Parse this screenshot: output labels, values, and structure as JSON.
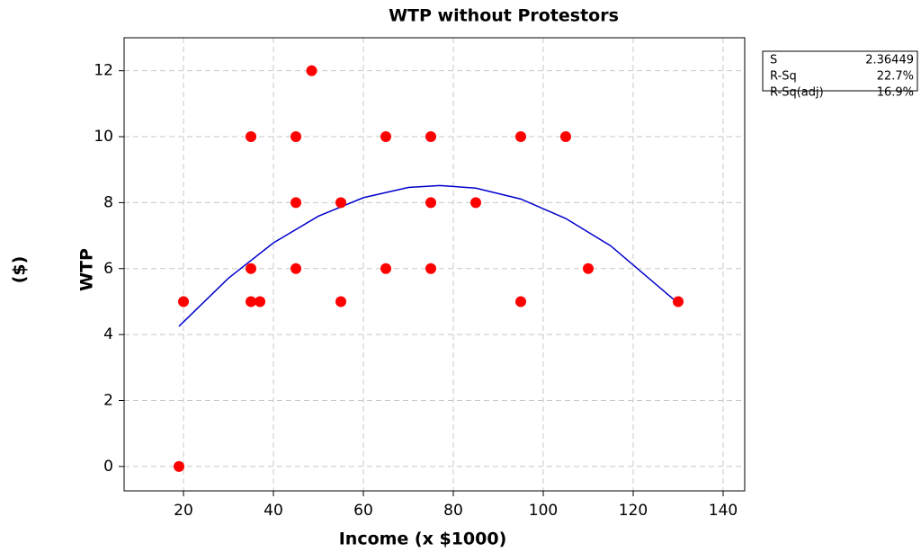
{
  "chart_data": {
    "type": "scatter",
    "title": "WTP without Protestors",
    "x_label": "Income (x $1000)",
    "y_label": "WTP",
    "y_unit_label": "($)",
    "xlim": [
      6.8,
      144.8
    ],
    "xticks": [
      20,
      40,
      60,
      80,
      100,
      120,
      140
    ],
    "ylim": [
      -0.74,
      13.0
    ],
    "yticks": [
      0,
      2,
      4,
      6,
      8,
      10,
      12
    ],
    "grid": true,
    "points": {
      "color": "#ff0000",
      "x": [
        19,
        20,
        35,
        35,
        35,
        37,
        45,
        45,
        45,
        48.5,
        55,
        55,
        65,
        65,
        75,
        75,
        75,
        85,
        95,
        95,
        105,
        110,
        130
      ],
      "values": [
        0,
        5,
        10,
        6,
        5,
        5,
        10,
        8,
        6,
        12,
        8,
        5,
        10,
        6,
        10,
        8,
        6,
        8,
        10,
        5,
        10,
        6,
        5
      ]
    },
    "fit": {
      "color": "#0000cc",
      "x": [
        19,
        30,
        40,
        50,
        60,
        70,
        77,
        85,
        95,
        105,
        115,
        130
      ],
      "values": [
        4.25,
        5.71,
        6.78,
        7.59,
        8.15,
        8.46,
        8.52,
        8.44,
        8.11,
        7.52,
        6.69,
        4.95
      ]
    },
    "stats": [
      [
        "S",
        "2.36449"
      ],
      [
        "R-Sq",
        "22.7%"
      ],
      [
        "R-Sq(adj)",
        "16.9%"
      ]
    ]
  }
}
